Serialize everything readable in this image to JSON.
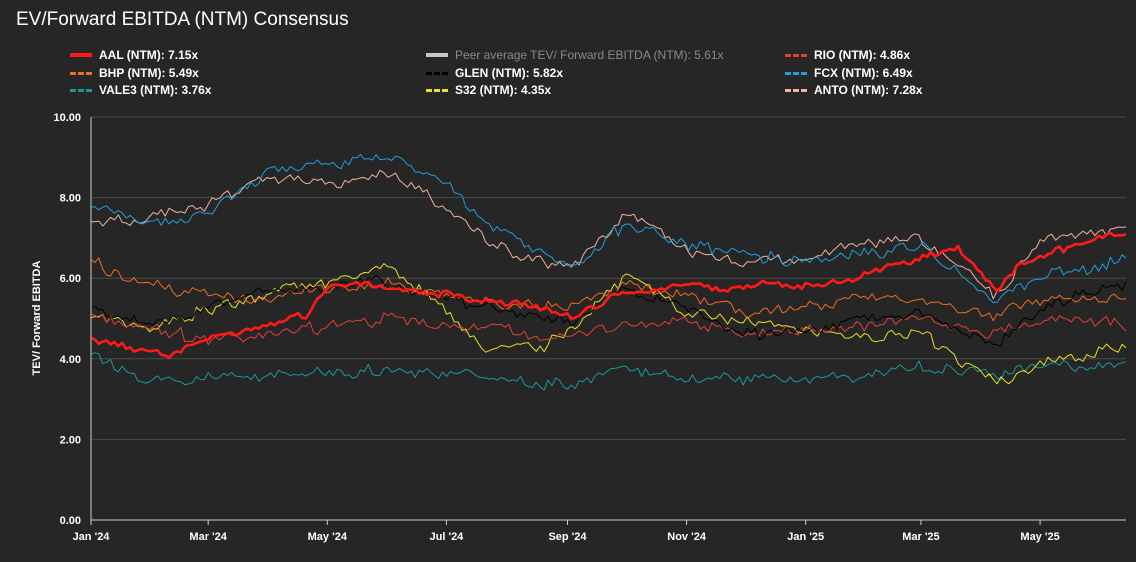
{
  "chart_data": {
    "type": "line",
    "title": "EV/Forward EBITDA (NTM) Consensus",
    "ylabel": "TEV/ Forward EBITDA",
    "ylim": [
      0,
      10
    ],
    "yticks": [
      "0.00",
      "2.00",
      "4.00",
      "6.00",
      "8.00",
      "10.00"
    ],
    "xlim": [
      "2024-01-01",
      "2025-06-14"
    ],
    "xticks": [
      {
        "date": "2024-01-01",
        "label": "Jan '24"
      },
      {
        "date": "2024-03-01",
        "label": "Mar '24"
      },
      {
        "date": "2024-05-01",
        "label": "May '24"
      },
      {
        "date": "2024-07-01",
        "label": "Jul '24"
      },
      {
        "date": "2024-09-01",
        "label": "Sep '24"
      },
      {
        "date": "2024-11-01",
        "label": "Nov '24"
      },
      {
        "date": "2025-01-01",
        "label": "Jan '25"
      },
      {
        "date": "2025-03-01",
        "label": "Mar '25"
      },
      {
        "date": "2025-05-01",
        "label": "May '25"
      }
    ],
    "grid": true,
    "legend_position": "top",
    "series": [
      {
        "name": "AAL (NTM)",
        "value_label": "7.15x",
        "color": "#ff1a1a",
        "style": "solid",
        "points": [
          [
            "2024-01-01",
            4.5
          ],
          [
            "2024-01-20",
            4.3
          ],
          [
            "2024-02-10",
            4.1
          ],
          [
            "2024-03-01",
            4.5
          ],
          [
            "2024-04-01",
            4.9
          ],
          [
            "2024-04-20",
            5.1
          ],
          [
            "2024-05-01",
            5.8
          ],
          [
            "2024-05-20",
            5.9
          ],
          [
            "2024-06-10",
            5.7
          ],
          [
            "2024-07-01",
            5.6
          ],
          [
            "2024-07-25",
            5.4
          ],
          [
            "2024-08-15",
            5.3
          ],
          [
            "2024-09-05",
            5.0
          ],
          [
            "2024-09-25",
            5.6
          ],
          [
            "2024-10-15",
            5.7
          ],
          [
            "2024-11-01",
            5.9
          ],
          [
            "2024-11-20",
            5.7
          ],
          [
            "2024-12-10",
            5.9
          ],
          [
            "2025-01-01",
            5.8
          ],
          [
            "2025-01-20",
            5.9
          ],
          [
            "2025-02-10",
            6.3
          ],
          [
            "2025-03-01",
            6.5
          ],
          [
            "2025-03-20",
            6.8
          ],
          [
            "2025-04-08",
            5.7
          ],
          [
            "2025-04-20",
            6.3
          ],
          [
            "2025-05-10",
            6.7
          ],
          [
            "2025-06-14",
            7.15
          ]
        ]
      },
      {
        "name": "Peer average TEV/ Forward EBITDA (NTM)",
        "value_label": "5.61x",
        "color": "#c8c8c8",
        "style": "solid",
        "muted": true,
        "points": []
      },
      {
        "name": "RIO (NTM)",
        "value_label": "4.86x",
        "color": "#e0403a",
        "style": "dashed",
        "points": [
          [
            "2024-01-01",
            5.1
          ],
          [
            "2024-02-01",
            4.7
          ],
          [
            "2024-03-01",
            4.5
          ],
          [
            "2024-04-01",
            4.6
          ],
          [
            "2024-05-01",
            4.8
          ],
          [
            "2024-06-01",
            5.0
          ],
          [
            "2024-07-01",
            4.8
          ],
          [
            "2024-08-01",
            4.7
          ],
          [
            "2024-09-01",
            4.5
          ],
          [
            "2024-10-01",
            4.9
          ],
          [
            "2024-11-01",
            4.9
          ],
          [
            "2024-12-01",
            4.6
          ],
          [
            "2025-01-01",
            4.7
          ],
          [
            "2025-02-01",
            4.8
          ],
          [
            "2025-03-01",
            5.0
          ],
          [
            "2025-04-08",
            4.6
          ],
          [
            "2025-05-01",
            5.0
          ],
          [
            "2025-06-14",
            4.86
          ]
        ]
      },
      {
        "name": "BHP (NTM)",
        "value_label": "5.49x",
        "color": "#f06b25",
        "style": "dashed",
        "points": [
          [
            "2024-01-01",
            6.4
          ],
          [
            "2024-02-01",
            5.8
          ],
          [
            "2024-03-01",
            5.6
          ],
          [
            "2024-04-01",
            5.5
          ],
          [
            "2024-05-01",
            5.8
          ],
          [
            "2024-06-01",
            5.9
          ],
          [
            "2024-07-01",
            5.6
          ],
          [
            "2024-08-01",
            5.3
          ],
          [
            "2024-09-01",
            5.3
          ],
          [
            "2024-10-01",
            5.8
          ],
          [
            "2024-11-01",
            5.6
          ],
          [
            "2024-12-01",
            5.1
          ],
          [
            "2025-01-01",
            5.3
          ],
          [
            "2025-02-01",
            5.5
          ],
          [
            "2025-03-01",
            5.5
          ],
          [
            "2025-04-08",
            5.0
          ],
          [
            "2025-05-01",
            5.5
          ],
          [
            "2025-06-14",
            5.49
          ]
        ]
      },
      {
        "name": "GLEN (NTM)",
        "value_label": "5.82x",
        "color": "#000000",
        "style": "dashed",
        "points": [
          [
            "2024-01-01",
            5.2
          ],
          [
            "2024-02-01",
            4.8
          ],
          [
            "2024-03-01",
            5.3
          ],
          [
            "2024-04-01",
            5.7
          ],
          [
            "2024-05-01",
            5.8
          ],
          [
            "2024-06-01",
            5.9
          ],
          [
            "2024-07-01",
            5.5
          ],
          [
            "2024-08-01",
            5.2
          ],
          [
            "2024-09-01",
            4.9
          ],
          [
            "2024-10-01",
            5.7
          ],
          [
            "2024-11-01",
            5.3
          ],
          [
            "2024-12-01",
            4.6
          ],
          [
            "2025-01-01",
            4.7
          ],
          [
            "2025-02-01",
            5.0
          ],
          [
            "2025-03-01",
            5.1
          ],
          [
            "2025-04-08",
            4.3
          ],
          [
            "2025-05-01",
            5.3
          ],
          [
            "2025-06-14",
            5.82
          ]
        ]
      },
      {
        "name": "FCX (NTM)",
        "value_label": "6.49x",
        "color": "#1ea0dc",
        "style": "dashed",
        "points": [
          [
            "2024-01-01",
            7.8
          ],
          [
            "2024-02-01",
            7.3
          ],
          [
            "2024-03-01",
            7.6
          ],
          [
            "2024-04-01",
            8.7
          ],
          [
            "2024-05-01",
            8.8
          ],
          [
            "2024-06-01",
            9.1
          ],
          [
            "2024-07-01",
            8.3
          ],
          [
            "2024-07-25",
            7.3
          ],
          [
            "2024-08-20",
            6.6
          ],
          [
            "2024-09-05",
            6.2
          ],
          [
            "2024-10-01",
            7.4
          ],
          [
            "2024-11-01",
            6.8
          ],
          [
            "2024-12-01",
            6.6
          ],
          [
            "2025-01-01",
            6.4
          ],
          [
            "2025-02-01",
            6.6
          ],
          [
            "2025-03-01",
            6.8
          ],
          [
            "2025-04-08",
            5.5
          ],
          [
            "2025-05-01",
            6.0
          ],
          [
            "2025-06-14",
            6.49
          ]
        ]
      },
      {
        "name": "VALE3 (NTM)",
        "value_label": "3.76x",
        "color": "#1a9a9a",
        "style": "dashed",
        "points": [
          [
            "2024-01-01",
            4.1
          ],
          [
            "2024-02-01",
            3.5
          ],
          [
            "2024-03-01",
            3.5
          ],
          [
            "2024-04-01",
            3.6
          ],
          [
            "2024-05-01",
            3.7
          ],
          [
            "2024-06-01",
            3.7
          ],
          [
            "2024-07-01",
            3.6
          ],
          [
            "2024-08-01",
            3.5
          ],
          [
            "2024-09-01",
            3.3
          ],
          [
            "2024-10-01",
            3.7
          ],
          [
            "2024-11-01",
            3.6
          ],
          [
            "2024-12-01",
            3.5
          ],
          [
            "2025-01-01",
            3.5
          ],
          [
            "2025-02-01",
            3.6
          ],
          [
            "2025-03-01",
            3.8
          ],
          [
            "2025-04-08",
            3.6
          ],
          [
            "2025-05-01",
            3.8
          ],
          [
            "2025-06-14",
            3.76
          ]
        ]
      },
      {
        "name": "S32 (NTM)",
        "value_label": "4.35x",
        "color": "#e8e020",
        "style": "dashed",
        "points": [
          [
            "2024-01-01",
            5.0
          ],
          [
            "2024-02-01",
            4.8
          ],
          [
            "2024-03-01",
            5.2
          ],
          [
            "2024-04-01",
            5.6
          ],
          [
            "2024-05-01",
            5.9
          ],
          [
            "2024-06-01",
            6.3
          ],
          [
            "2024-07-01",
            5.2
          ],
          [
            "2024-07-20",
            4.3
          ],
          [
            "2024-08-20",
            4.3
          ],
          [
            "2024-09-05",
            4.8
          ],
          [
            "2024-10-01",
            6.1
          ],
          [
            "2024-11-01",
            5.2
          ],
          [
            "2024-12-01",
            4.9
          ],
          [
            "2025-01-01",
            4.7
          ],
          [
            "2025-02-01",
            4.5
          ],
          [
            "2025-03-01",
            4.6
          ],
          [
            "2025-04-08",
            3.4
          ],
          [
            "2025-05-01",
            3.9
          ],
          [
            "2025-06-14",
            4.35
          ]
        ]
      },
      {
        "name": "ANTO (NTM)",
        "value_label": "7.28x",
        "color": "#f2b0a0",
        "style": "dashed",
        "points": [
          [
            "2024-01-01",
            7.4
          ],
          [
            "2024-02-01",
            7.5
          ],
          [
            "2024-03-01",
            7.8
          ],
          [
            "2024-04-01",
            8.5
          ],
          [
            "2024-05-01",
            8.3
          ],
          [
            "2024-06-01",
            8.6
          ],
          [
            "2024-07-01",
            7.8
          ],
          [
            "2024-07-25",
            6.8
          ],
          [
            "2024-08-20",
            6.4
          ],
          [
            "2024-09-05",
            6.3
          ],
          [
            "2024-10-01",
            7.6
          ],
          [
            "2024-11-01",
            6.7
          ],
          [
            "2024-12-01",
            6.4
          ],
          [
            "2025-01-01",
            6.5
          ],
          [
            "2025-02-01",
            6.9
          ],
          [
            "2025-03-01",
            7.0
          ],
          [
            "2025-04-08",
            5.6
          ],
          [
            "2025-05-01",
            6.9
          ],
          [
            "2025-06-14",
            7.28
          ]
        ]
      }
    ]
  }
}
